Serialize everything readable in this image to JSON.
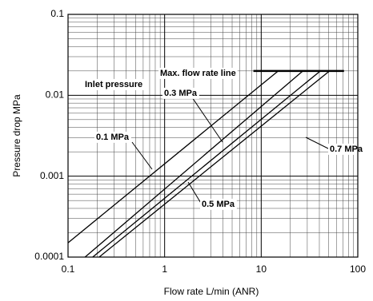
{
  "chart_data": {
    "type": "line",
    "x_label": "Flow rate  L/min (ANR)",
    "y_label": "Pressure drop  MPa",
    "log_x": true,
    "log_y": true,
    "grid": true,
    "minor_grid": true,
    "xlim": [
      0.1,
      100
    ],
    "ylim": [
      0.0001,
      0.1
    ],
    "xticks": [
      0.1,
      1,
      10,
      100
    ],
    "yticks": [
      0.0001,
      0.001,
      0.01,
      0.1
    ],
    "legend_title": "Inlet pressure",
    "series": [
      {
        "name": "0.1 MPa",
        "color": "#000000",
        "x": [
          0.1,
          15
        ],
        "values": [
          0.00015,
          0.02
        ]
      },
      {
        "name": "0.3 MPa",
        "color": "#000000",
        "x": [
          0.15,
          27
        ],
        "values": [
          0.0001,
          0.02
        ]
      },
      {
        "name": "0.5 MPa",
        "color": "#000000",
        "x": [
          0.18,
          41
        ],
        "values": [
          0.0001,
          0.02
        ]
      },
      {
        "name": "0.7 MPa",
        "color": "#000000",
        "x": [
          0.21,
          51
        ],
        "values": [
          0.0001,
          0.02
        ]
      },
      {
        "name": "Max. flow rate line",
        "color": "#000000",
        "x": [
          8.3,
          72
        ],
        "values": [
          0.02,
          0.02
        ]
      }
    ]
  }
}
